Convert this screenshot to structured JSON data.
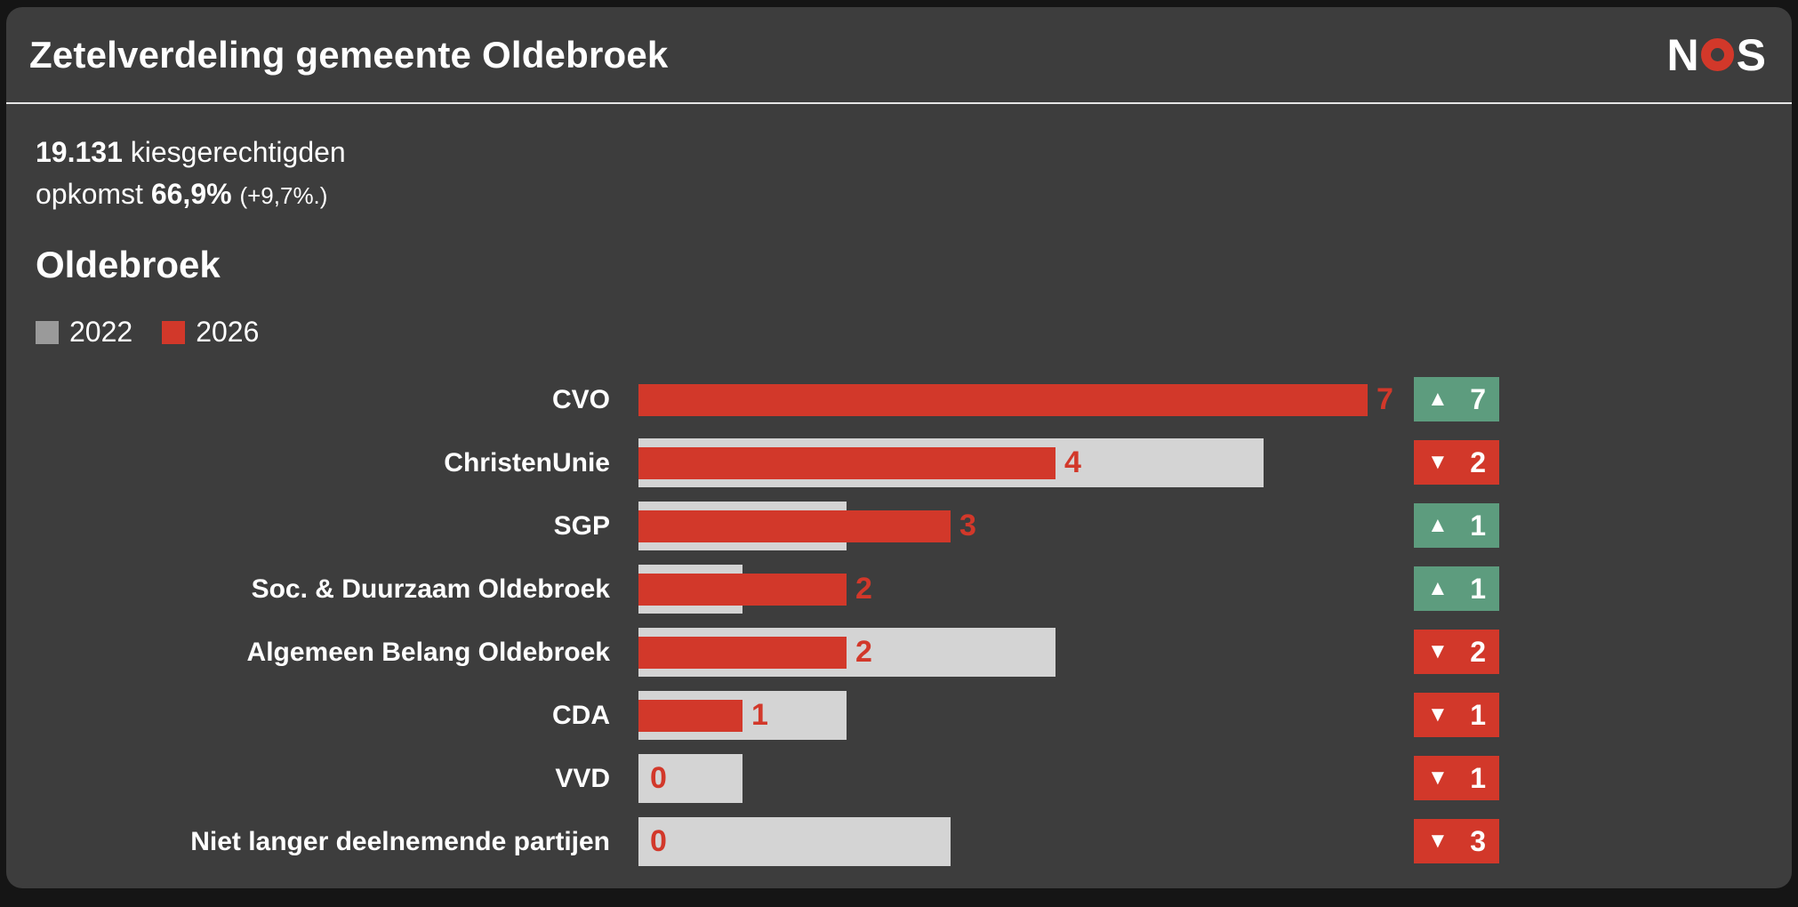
{
  "header": {
    "title": "Zetelverdeling gemeente Oldebroek",
    "logo_letters": [
      "N",
      "O",
      "S"
    ]
  },
  "stats": {
    "electorate_value": "19.131",
    "electorate_label": "kiesgerechtigden",
    "turnout_label": "opkomst",
    "turnout_value": "66,9%",
    "turnout_change": "(+9,7%.)"
  },
  "chart_data": {
    "type": "bar",
    "orientation": "horizontal",
    "title": "Oldebroek",
    "xlim": [
      0,
      7
    ],
    "legend": [
      {
        "label": "2022",
        "color": "#9a9a9a"
      },
      {
        "label": "2026",
        "color": "#d2382a"
      }
    ],
    "series_colors": {
      "2022": "#d4d4d4",
      "2026": "#d2382a"
    },
    "rows": [
      {
        "party": "CVO",
        "seats_2022": 0,
        "seats_2026": 7,
        "value_label": "7",
        "change": 7,
        "change_label": "7",
        "direction": "up"
      },
      {
        "party": "ChristenUnie",
        "seats_2022": 6,
        "seats_2026": 4,
        "value_label": "4",
        "change": -2,
        "change_label": "2",
        "direction": "down"
      },
      {
        "party": "SGP",
        "seats_2022": 2,
        "seats_2026": 3,
        "value_label": "3",
        "change": 1,
        "change_label": "1",
        "direction": "up"
      },
      {
        "party": "Soc. & Duurzaam Oldebroek",
        "seats_2022": 1,
        "seats_2026": 2,
        "value_label": "2",
        "change": 1,
        "change_label": "1",
        "direction": "up"
      },
      {
        "party": "Algemeen Belang Oldebroek",
        "seats_2022": 4,
        "seats_2026": 2,
        "value_label": "2",
        "change": -2,
        "change_label": "2",
        "direction": "down"
      },
      {
        "party": "CDA",
        "seats_2022": 2,
        "seats_2026": 1,
        "value_label": "1",
        "change": -1,
        "change_label": "1",
        "direction": "down"
      },
      {
        "party": "VVD",
        "seats_2022": 1,
        "seats_2026": 0,
        "value_label": "0",
        "change": -1,
        "change_label": "1",
        "direction": "down"
      },
      {
        "party": "Niet langer deelnemende partijen",
        "seats_2022": 3,
        "seats_2026": 0,
        "value_label": "0",
        "change": -3,
        "change_label": "3",
        "direction": "down"
      }
    ]
  },
  "colors": {
    "panel": "#3d3d3d",
    "background": "#151515",
    "divider": "#e6e6e6",
    "bar_2022": "#d4d4d4",
    "bar_2026": "#d2382a",
    "badge_up": "#5d9c7e",
    "badge_down": "#d2382a",
    "value_text": "#d2382a",
    "text": "#ffffff"
  }
}
